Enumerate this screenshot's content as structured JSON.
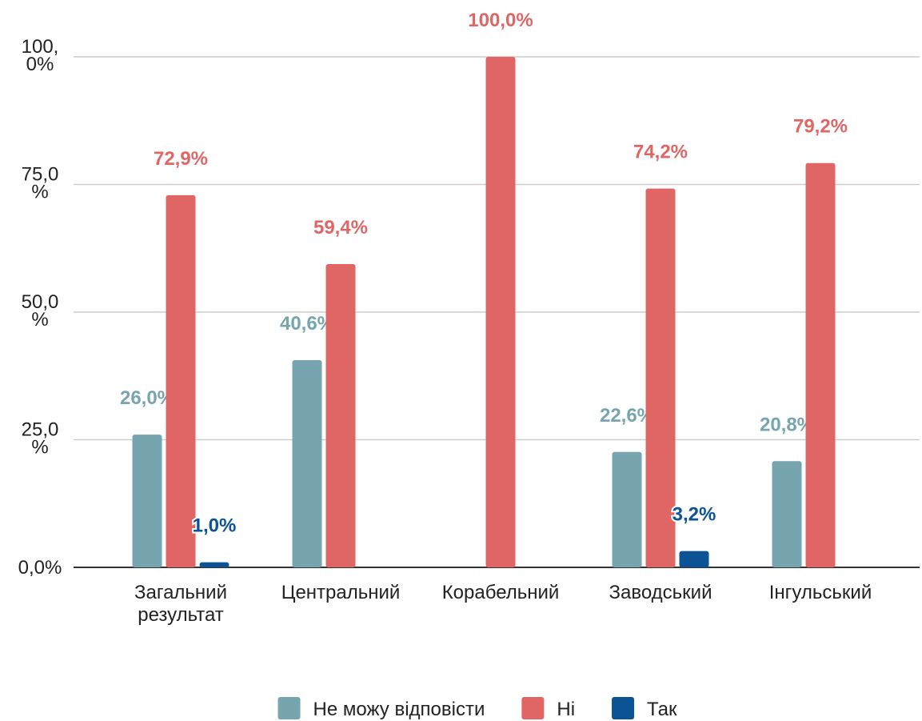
{
  "chart_data": {
    "type": "bar",
    "categories": [
      "Загальний результат",
      "Центральний",
      "Корабельний",
      "Заводський",
      "Інгульський"
    ],
    "series": [
      {
        "name": "Не можу відповісти",
        "color": "#76a5af",
        "values": [
          26.0,
          40.6,
          null,
          22.6,
          20.8
        ],
        "value_labels": [
          "26,0%",
          "40,6%",
          null,
          "22,6%",
          "20,8%"
        ]
      },
      {
        "name": "Ні",
        "color": "#e06666",
        "values": [
          72.9,
          59.4,
          100.0,
          74.2,
          79.2
        ],
        "value_labels": [
          "72,9%",
          "59,4%",
          "100,0%",
          "74,2%",
          "79,2%"
        ]
      },
      {
        "name": "Так",
        "color": "#0b5394",
        "values": [
          1.0,
          null,
          null,
          3.2,
          null
        ],
        "value_labels": [
          "1,0%",
          null,
          null,
          "3,2%",
          null
        ]
      }
    ],
    "ylim": [
      0,
      100
    ],
    "yticks": [
      {
        "value": 0,
        "label": "0,0%"
      },
      {
        "value": 25,
        "label": "25,0%"
      },
      {
        "value": 50,
        "label": "50,0%"
      },
      {
        "value": 75,
        "label": "75,0%"
      },
      {
        "value": 100,
        "label": "100,0%"
      }
    ],
    "grid": true,
    "legend": "bottom"
  }
}
